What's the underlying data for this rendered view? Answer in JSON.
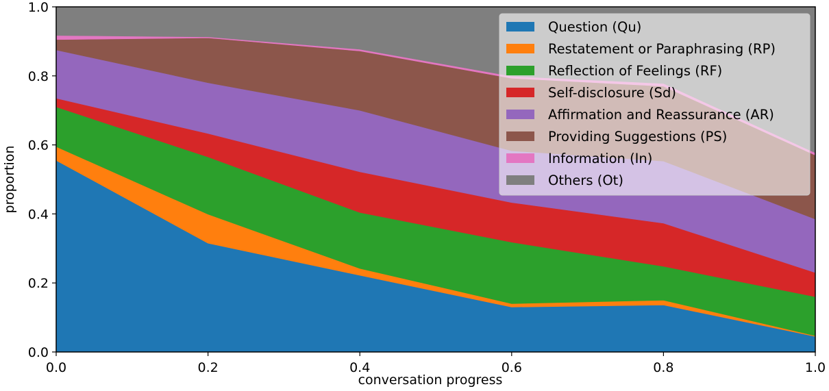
{
  "chart_data": {
    "type": "area",
    "stacked": true,
    "xlabel": "conversation progress",
    "ylabel": "proportion",
    "xlim": [
      0.0,
      1.0
    ],
    "ylim": [
      0.0,
      1.0
    ],
    "x": [
      0.0,
      0.2,
      0.4,
      0.6,
      0.8,
      1.0
    ],
    "xticks": [
      "0.0",
      "0.2",
      "0.4",
      "0.6",
      "0.8",
      "1.0"
    ],
    "yticks": [
      "0.0",
      "0.2",
      "0.4",
      "0.6",
      "0.8",
      "1.0"
    ],
    "legend_position": "top-right",
    "series": [
      {
        "name": "Question (Qu)",
        "color": "#1f77b4",
        "values": [
          0.555,
          0.315,
          0.222,
          0.13,
          0.136,
          0.045
        ]
      },
      {
        "name": "Restatement or Paraphrasing (RP)",
        "color": "#ff7f0e",
        "values": [
          0.04,
          0.084,
          0.02,
          0.01,
          0.014,
          0.002
        ]
      },
      {
        "name": "Reflection of Feelings (RF)",
        "color": "#2ca02c",
        "values": [
          0.115,
          0.166,
          0.162,
          0.178,
          0.098,
          0.113
        ]
      },
      {
        "name": "Self-disclosure (Sd)",
        "color": "#d62728",
        "values": [
          0.025,
          0.068,
          0.118,
          0.115,
          0.125,
          0.07
        ]
      },
      {
        "name": "Affirmation and Reassurance (AR)",
        "color": "#9467bd",
        "values": [
          0.14,
          0.147,
          0.178,
          0.15,
          0.18,
          0.155
        ]
      },
      {
        "name": "Providing Suggestions (PS)",
        "color": "#8c564b",
        "values": [
          0.03,
          0.13,
          0.172,
          0.21,
          0.217,
          0.185
        ]
      },
      {
        "name": "Information (In)",
        "color": "#e377c2",
        "values": [
          0.012,
          0.003,
          0.005,
          0.006,
          0.008,
          0.007
        ]
      },
      {
        "name": "Others (Ot)",
        "color": "#7f7f7f",
        "values": [
          0.083,
          0.087,
          0.123,
          0.201,
          0.222,
          0.423
        ]
      }
    ]
  }
}
